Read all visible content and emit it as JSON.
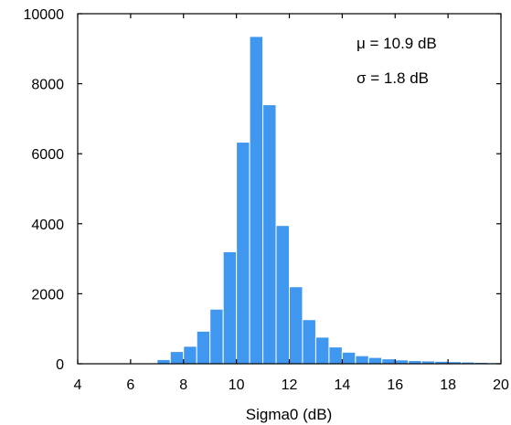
{
  "chart_data": {
    "type": "bar",
    "xlabel": "Sigma0 (dB)",
    "ylabel": "",
    "xlim": [
      4,
      20
    ],
    "ylim": [
      0,
      10000
    ],
    "xticks": [
      "4",
      "6",
      "8",
      "10",
      "12",
      "14",
      "16",
      "18",
      "20"
    ],
    "yticks": [
      "0",
      "2000",
      "4000",
      "6000",
      "8000",
      "10000"
    ],
    "bin_width": 0.5,
    "bins": [
      {
        "x": 6.5,
        "value": 20
      },
      {
        "x": 7.0,
        "value": 120
      },
      {
        "x": 7.5,
        "value": 350
      },
      {
        "x": 8.0,
        "value": 500
      },
      {
        "x": 8.5,
        "value": 930
      },
      {
        "x": 9.0,
        "value": 1560
      },
      {
        "x": 9.5,
        "value": 3200
      },
      {
        "x": 10.0,
        "value": 6330
      },
      {
        "x": 10.5,
        "value": 9350
      },
      {
        "x": 11.0,
        "value": 7400
      },
      {
        "x": 11.5,
        "value": 3950
      },
      {
        "x": 12.0,
        "value": 2200
      },
      {
        "x": 12.5,
        "value": 1260
      },
      {
        "x": 13.0,
        "value": 760
      },
      {
        "x": 13.5,
        "value": 480
      },
      {
        "x": 14.0,
        "value": 330
      },
      {
        "x": 14.5,
        "value": 230
      },
      {
        "x": 15.0,
        "value": 180
      },
      {
        "x": 15.5,
        "value": 140
      },
      {
        "x": 16.0,
        "value": 110
      },
      {
        "x": 16.5,
        "value": 90
      },
      {
        "x": 17.0,
        "value": 80
      },
      {
        "x": 17.5,
        "value": 70
      },
      {
        "x": 18.0,
        "value": 60
      },
      {
        "x": 18.5,
        "value": 50
      },
      {
        "x": 19.0,
        "value": 40
      },
      {
        "x": 19.5,
        "value": 30
      }
    ],
    "bar_color": "#3f97f0",
    "annotations": {
      "mu": "μ = 10.9 dB",
      "sigma": "σ = 1.8 dB"
    },
    "grid": false,
    "legend": "none"
  }
}
